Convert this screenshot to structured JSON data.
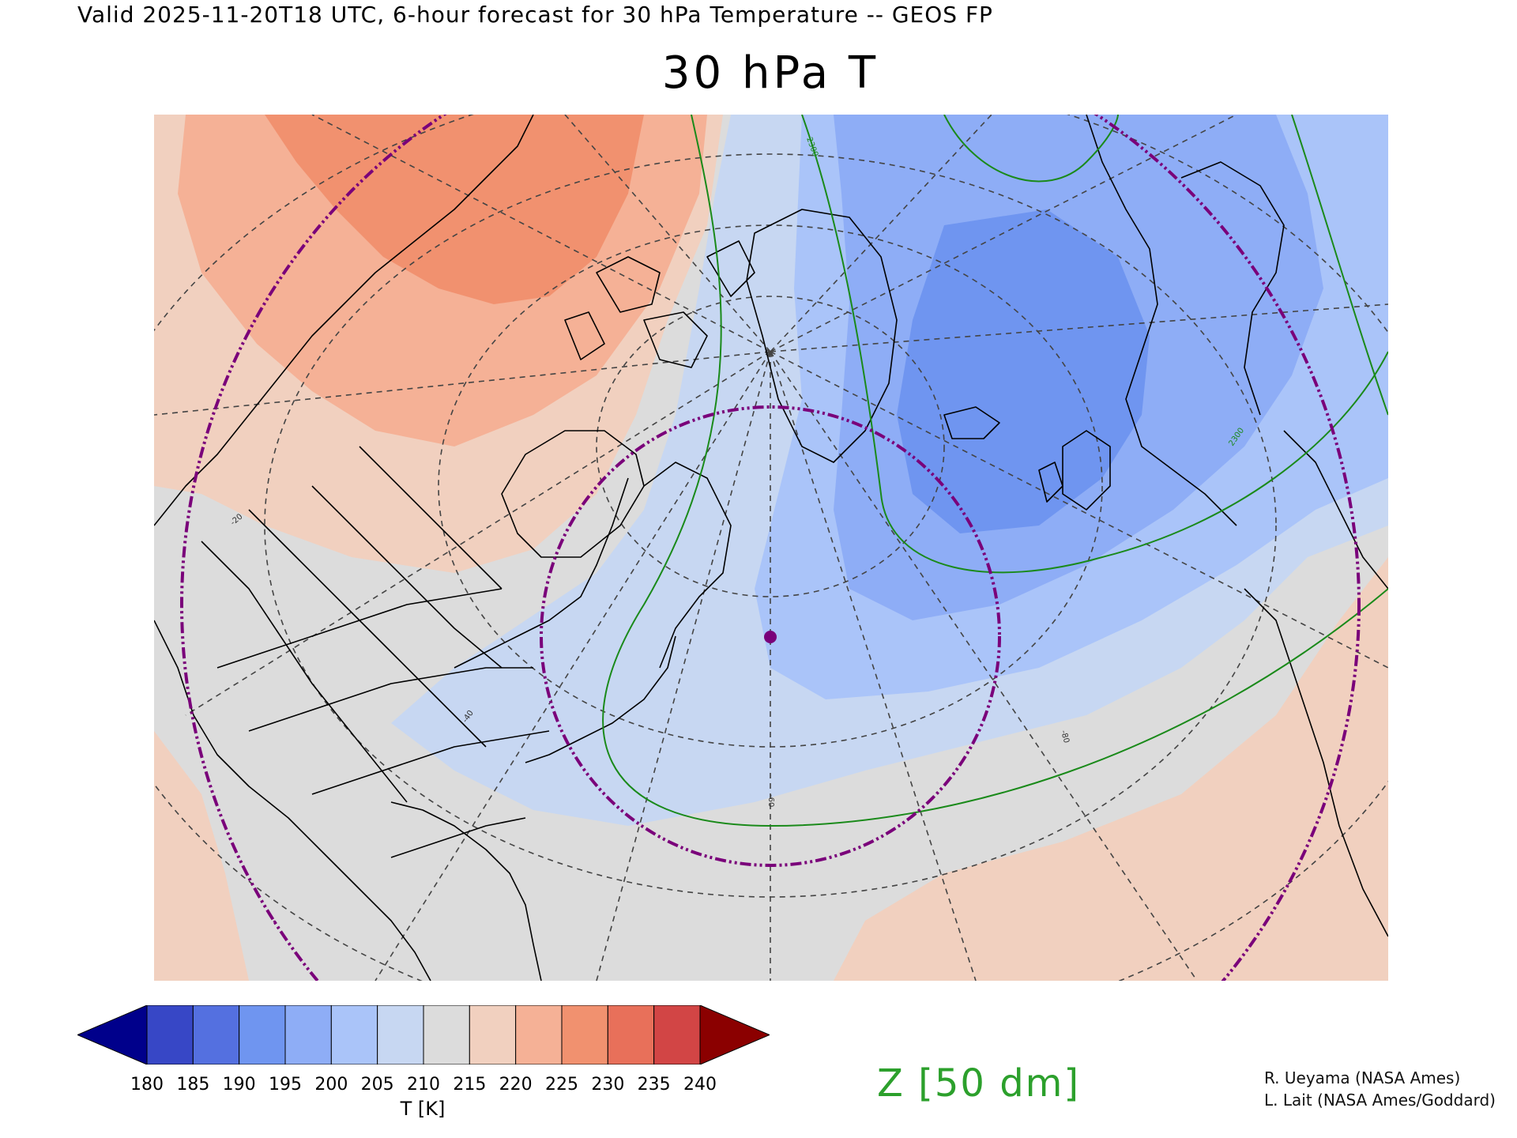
{
  "header": {
    "valid_text": "Valid 2025-11-20T18 UTC, 6-hour forecast for 30 hPa Temperature -- GEOS FP",
    "title": "30 hPa T"
  },
  "map": {
    "contour_labels": [
      "2300",
      "2300",
      "-80",
      "-60",
      "-40",
      "-20"
    ],
    "marker_color": "#7a007a",
    "ring_color": "#7a007a",
    "geopotential_color": "#1a8a1a",
    "coast_color": "#000000",
    "grid_color": "#444444"
  },
  "colorbar": {
    "levels": [
      "180",
      "185",
      "190",
      "195",
      "200",
      "205",
      "210",
      "215",
      "220",
      "225",
      "230",
      "235",
      "240"
    ],
    "colors": [
      "#00008b",
      "#3747c6",
      "#5470e0",
      "#6f95f0",
      "#8eadf6",
      "#aac4f9",
      "#c7d7f2",
      "#dcdcdc",
      "#f1d0bf",
      "#f5b196",
      "#f1916f",
      "#e8705a",
      "#d24545",
      "#8b0000"
    ],
    "label": "T [K]"
  },
  "legend": {
    "z_label": "Z [50 dm]"
  },
  "credits": {
    "line1": "R. Ueyama (NASA Ames)",
    "line2": "L. Lait (NASA Ames/Goddard)"
  }
}
